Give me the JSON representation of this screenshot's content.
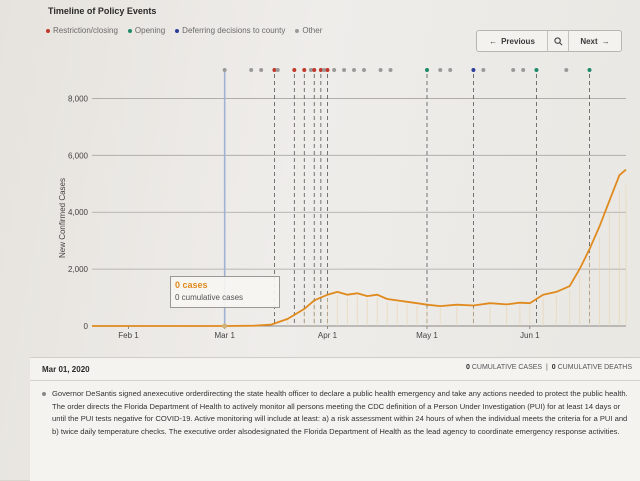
{
  "header": {
    "title": "Timeline of Policy Events"
  },
  "legend": [
    {
      "label": "Restriction/closing",
      "color": "#c0392b"
    },
    {
      "label": "Opening",
      "color": "#1f8a6a"
    },
    {
      "label": "Deferring decisions to county",
      "color": "#2b3e9a"
    },
    {
      "label": "Other",
      "color": "#9a9a9a"
    }
  ],
  "nav": {
    "previous_label": "Previous",
    "next_label": "Next",
    "prev_icon": "arrow-left-icon",
    "search_icon": "search-icon",
    "next_icon": "arrow-right-icon"
  },
  "tooltip": {
    "cases": "0 cases",
    "cumulative": "0 cumulative cases"
  },
  "detail": {
    "date": "Mar 01, 2020",
    "cumulative_cases_value": "0",
    "cumulative_cases_label": "CUMULATIVE CASES",
    "separator": "|",
    "cumulative_deaths_value": "0",
    "cumulative_deaths_label": "CUMULATIVE DEATHS",
    "description": "Governor DeSantis signed anexecutive orderdirecting the state health officer to declare a public health emergency and take any actions needed to protect the public health. The order directs the Florida Department of Health to actively monitor all persons meeting the CDC definition of a Person Under Investigation (PUI) for at least 14 days or until the PUI tests negative for COVID-19. Active monitoring will include at least: a) a risk assessment within 24 hours of when the individual meets the criteria for a PUI and b) twice daily temperature checks. The executive order alsodesignated the Florida Department of Health as the lead agency to coordinate emergency response activities."
  },
  "chart_data": {
    "type": "line",
    "ylabel": "New Confirmed Cases",
    "xlabel": "",
    "ylim": [
      0,
      9000
    ],
    "yticks": [
      0,
      2000,
      4000,
      6000,
      8000
    ],
    "ytick_labels": [
      "0",
      "2,000",
      "4,000",
      "6,000",
      "8,000"
    ],
    "grid": true,
    "xlim": [
      "2020-01-21",
      "2020-06-30"
    ],
    "xticks": [
      {
        "date": "2020-02-01",
        "label": "Feb 1"
      },
      {
        "date": "2020-03-01",
        "label": "Mar 1"
      },
      {
        "date": "2020-04-01",
        "label": "Apr 1"
      },
      {
        "date": "2020-05-01",
        "label": "May 1"
      },
      {
        "date": "2020-06-01",
        "label": "Jun 1"
      }
    ],
    "selected_date": "2020-03-01",
    "series": [
      {
        "points": [
          [
            "2020-01-21",
            0
          ],
          [
            "2020-02-15",
            0
          ],
          [
            "2020-03-01",
            0
          ],
          [
            "2020-03-10",
            10
          ],
          [
            "2020-03-15",
            50
          ],
          [
            "2020-03-20",
            250
          ],
          [
            "2020-03-25",
            600
          ],
          [
            "2020-03-28",
            900
          ],
          [
            "2020-04-01",
            1100
          ],
          [
            "2020-04-04",
            1200
          ],
          [
            "2020-04-07",
            1100
          ],
          [
            "2020-04-10",
            1150
          ],
          [
            "2020-04-13",
            1050
          ],
          [
            "2020-04-16",
            1100
          ],
          [
            "2020-04-19",
            950
          ],
          [
            "2020-04-22",
            900
          ],
          [
            "2020-04-25",
            850
          ],
          [
            "2020-04-28",
            800
          ],
          [
            "2020-05-01",
            750
          ],
          [
            "2020-05-05",
            700
          ],
          [
            "2020-05-10",
            750
          ],
          [
            "2020-05-15",
            720
          ],
          [
            "2020-05-20",
            800
          ],
          [
            "2020-05-25",
            760
          ],
          [
            "2020-05-29",
            820
          ],
          [
            "2020-06-01",
            800
          ],
          [
            "2020-06-05",
            1100
          ],
          [
            "2020-06-09",
            1200
          ],
          [
            "2020-06-13",
            1400
          ],
          [
            "2020-06-16",
            2000
          ],
          [
            "2020-06-19",
            2700
          ],
          [
            "2020-06-22",
            3500
          ],
          [
            "2020-06-25",
            4400
          ],
          [
            "2020-06-28",
            5300
          ],
          [
            "2020-06-30",
            5500
          ]
        ],
        "color": "#e08a1e"
      }
    ],
    "events": [
      {
        "date": "2020-03-01",
        "type": "other"
      },
      {
        "date": "2020-03-09",
        "type": "other"
      },
      {
        "date": "2020-03-12",
        "type": "other"
      },
      {
        "date": "2020-03-16",
        "type": "restriction"
      },
      {
        "date": "2020-03-17",
        "type": "other"
      },
      {
        "date": "2020-03-22",
        "type": "restriction"
      },
      {
        "date": "2020-03-25",
        "type": "restriction"
      },
      {
        "date": "2020-03-27",
        "type": "other"
      },
      {
        "date": "2020-03-28",
        "type": "restriction"
      },
      {
        "date": "2020-03-30",
        "type": "restriction"
      },
      {
        "date": "2020-03-31",
        "type": "other"
      },
      {
        "date": "2020-04-01",
        "type": "restriction"
      },
      {
        "date": "2020-04-03",
        "type": "other"
      },
      {
        "date": "2020-04-06",
        "type": "other"
      },
      {
        "date": "2020-04-09",
        "type": "other"
      },
      {
        "date": "2020-04-12",
        "type": "other"
      },
      {
        "date": "2020-04-17",
        "type": "other"
      },
      {
        "date": "2020-04-20",
        "type": "other"
      },
      {
        "date": "2020-05-01",
        "type": "opening"
      },
      {
        "date": "2020-05-05",
        "type": "other"
      },
      {
        "date": "2020-05-08",
        "type": "other"
      },
      {
        "date": "2020-05-15",
        "type": "deferring"
      },
      {
        "date": "2020-05-18",
        "type": "other"
      },
      {
        "date": "2020-05-27",
        "type": "other"
      },
      {
        "date": "2020-05-30",
        "type": "other"
      },
      {
        "date": "2020-06-03",
        "type": "opening"
      },
      {
        "date": "2020-06-12",
        "type": "other"
      },
      {
        "date": "2020-06-19",
        "type": "opening"
      }
    ]
  }
}
